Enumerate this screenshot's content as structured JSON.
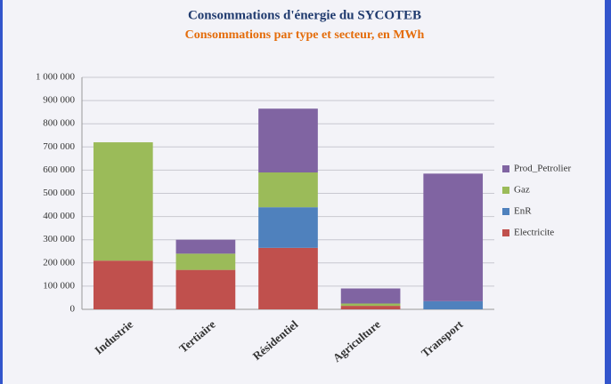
{
  "chart_data": {
    "type": "stacked_bar",
    "title": "Consommations d'énergie du SYCOTEB",
    "subtitle": "Consommations par type et secteur, en MWh",
    "categories": [
      "Industrie",
      "Tertiaire",
      "Résidentiel",
      "Agriculture",
      "Transport"
    ],
    "series": [
      {
        "name": "Electricite",
        "color": "#c0504d",
        "values": [
          210000,
          170000,
          265000,
          15000,
          0
        ]
      },
      {
        "name": "EnR",
        "color": "#4f81bd",
        "values": [
          0,
          0,
          175000,
          0,
          35000
        ]
      },
      {
        "name": "Gaz",
        "color": "#9bbb59",
        "values": [
          510000,
          70000,
          150000,
          10000,
          0
        ]
      },
      {
        "name": "Prod_Petrolier",
        "color": "#8064a2",
        "values": [
          0,
          60000,
          275000,
          65000,
          550000
        ]
      }
    ],
    "ylim": [
      0,
      1000000
    ],
    "yticks": [
      0,
      {
        "value": 100000,
        "label": "100 000"
      },
      {
        "value": 200000,
        "label": "200 000"
      },
      {
        "value": 300000,
        "label": "300 000"
      },
      {
        "value": 400000,
        "label": "400 000"
      },
      {
        "value": 500000,
        "label": "500 000"
      },
      {
        "value": 600000,
        "label": "600 000"
      },
      {
        "value": 700000,
        "label": "700 000"
      },
      {
        "value": 800000,
        "label": "800 000"
      },
      {
        "value": 900000,
        "label": "900 000"
      },
      {
        "value": 1000000,
        "label": "1 000 000"
      }
    ],
    "grid": true,
    "legend": "right"
  }
}
